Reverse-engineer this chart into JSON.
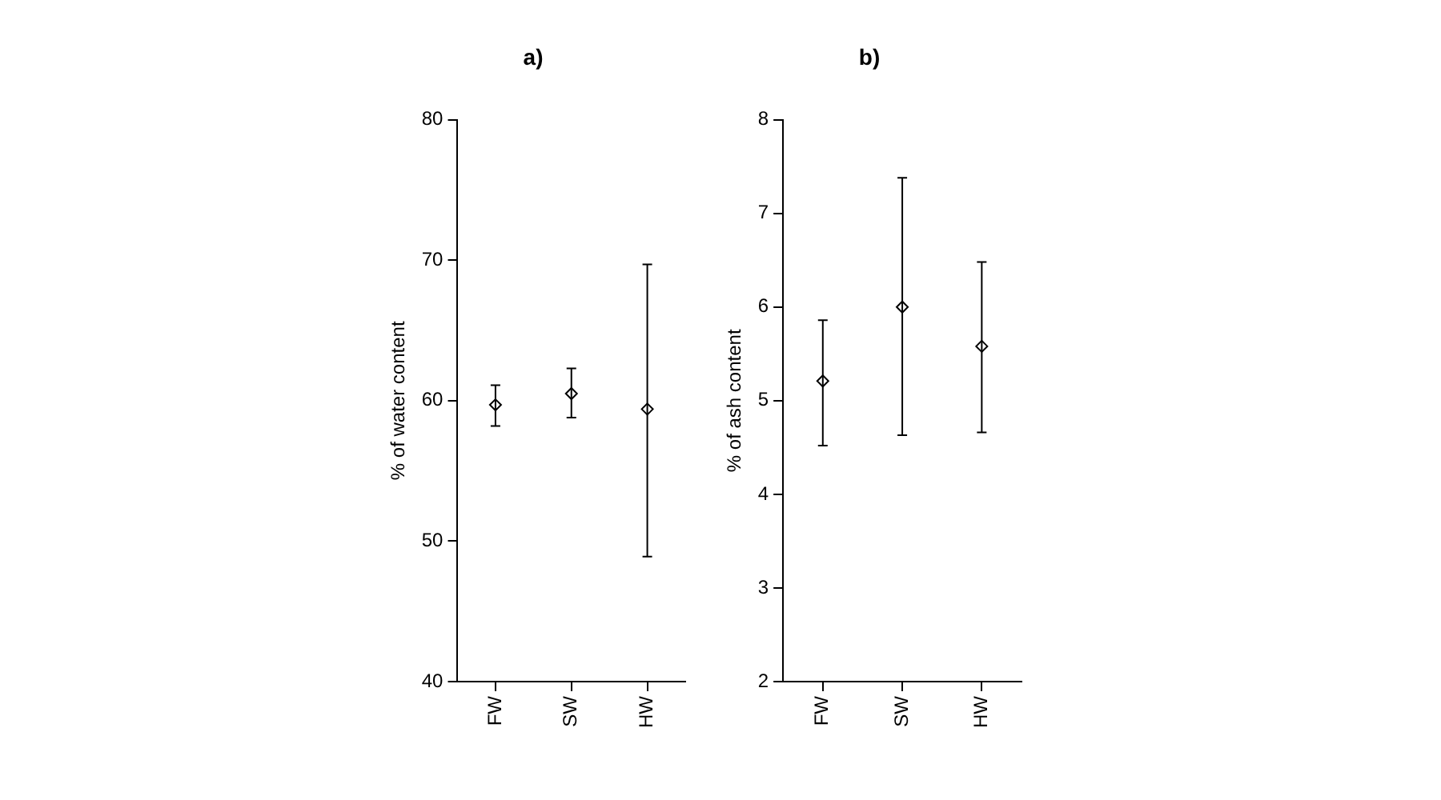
{
  "chart_data": [
    {
      "type": "scatter",
      "title": "a)",
      "ylabel": "% of water content",
      "categories": [
        "FW",
        "SW",
        "HW"
      ],
      "values": [
        59.7,
        60.5,
        59.4
      ],
      "errors": [
        [
          58.2,
          61.1
        ],
        [
          58.8,
          62.3
        ],
        [
          48.9,
          69.7
        ]
      ],
      "color": "#000000",
      "marker": "diamond",
      "ylim": [
        40,
        80
      ],
      "yticks": [
        40,
        50,
        60,
        70,
        80
      ],
      "grid": false,
      "legend": false
    },
    {
      "type": "scatter",
      "title": "b)",
      "ylabel": "% of ash content",
      "categories": [
        "FW",
        "SW",
        "HW"
      ],
      "values": [
        5.21,
        6.0,
        5.58
      ],
      "errors": [
        [
          4.52,
          5.86
        ],
        [
          4.63,
          7.38
        ],
        [
          4.66,
          6.48
        ]
      ],
      "color": "#000000",
      "marker": "diamond",
      "ylim": [
        2,
        8
      ],
      "yticks": [
        2,
        3,
        4,
        5,
        6,
        7,
        8
      ],
      "grid": false,
      "legend": false
    }
  ]
}
